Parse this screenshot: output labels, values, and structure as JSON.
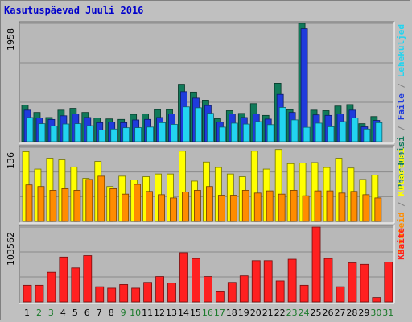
{
  "title": "Kasutuspäevad Juuli 2016",
  "chart_data": [
    {
      "type": "bar",
      "panel": "top",
      "y_max_label": "1958",
      "ylim": [
        0,
        1958
      ],
      "categories": [
        "1",
        "2",
        "3",
        "4",
        "5",
        "6",
        "7",
        "8",
        "9",
        "10",
        "11",
        "12",
        "13",
        "14",
        "15",
        "16",
        "17",
        "18",
        "19",
        "20",
        "21",
        "22",
        "23",
        "24",
        "25",
        "26",
        "27",
        "28",
        "29",
        "30",
        "31"
      ],
      "series": [
        {
          "name": "Pöördumisi",
          "color": "#117a5a",
          "values": [
            604,
            484,
            400,
            522,
            552,
            484,
            392,
            377,
            369,
            452,
            461,
            530,
            530,
            951,
            821,
            687,
            380,
            513,
            468,
            629,
            435,
            967,
            530,
            1958,
            522,
            513,
            590,
            614,
            298,
            416,
            0
          ]
        },
        {
          "name": "Faile",
          "color": "#1f3bdc",
          "values": [
            522,
            392,
            368,
            429,
            460,
            400,
            315,
            324,
            315,
            360,
            369,
            400,
            460,
            828,
            721,
            598,
            324,
            460,
            400,
            460,
            374,
            783,
            484,
            1870,
            444,
            435,
            460,
            522,
            246,
            352,
            0
          ]
        },
        {
          "name": "Leheküljed",
          "color": "#22d4f0",
          "values": [
            400,
            298,
            261,
            293,
            298,
            265,
            194,
            209,
            231,
            232,
            242,
            315,
            287,
            576,
            561,
            469,
            241,
            307,
            292,
            332,
            282,
            567,
            361,
            238,
            307,
            248,
            332,
            392,
            209,
            315,
            0
          ]
        }
      ],
      "yaxis_legend": "Pöördumisi / Faile / Leheküljed"
    },
    {
      "type": "bar",
      "panel": "middle",
      "y_max_label": "136",
      "ylim": [
        0,
        136
      ],
      "categories": [
        "1",
        "2",
        "3",
        "4",
        "5",
        "6",
        "7",
        "8",
        "9",
        "10",
        "11",
        "12",
        "13",
        "14",
        "15",
        "16",
        "17",
        "18",
        "19",
        "20",
        "21",
        "22",
        "23",
        "24",
        "25",
        "26",
        "27",
        "28",
        "29",
        "30",
        "31"
      ],
      "series": [
        {
          "name": "Külastusi",
          "color": "#ffff00",
          "values": [
            128,
            96,
            116,
            113,
            100,
            79,
            110,
            64,
            83,
            76,
            82,
            87,
            87,
            129,
            74,
            109,
            99,
            87,
            82,
            129,
            96,
            132,
            106,
            107,
            108,
            99,
            116,
            98,
            77,
            85,
            0
          ]
        },
        {
          "name": "Arvuteid",
          "color": "#ff8c00",
          "values": [
            67,
            64,
            57,
            60,
            57,
            77,
            83,
            60,
            50,
            68,
            55,
            49,
            43,
            54,
            57,
            64,
            48,
            48,
            57,
            52,
            56,
            50,
            57,
            47,
            56,
            56,
            52,
            55,
            49,
            43,
            0
          ]
        }
      ],
      "yaxis_legend": "Külastusi / Arvuteid"
    },
    {
      "type": "bar",
      "panel": "bottom",
      "y_max_label": "103562",
      "ylim": [
        0,
        103562
      ],
      "categories": [
        "1",
        "2",
        "3",
        "4",
        "5",
        "6",
        "7",
        "8",
        "9",
        "10",
        "11",
        "12",
        "13",
        "14",
        "15",
        "16",
        "17",
        "18",
        "19",
        "20",
        "21",
        "22",
        "23",
        "24",
        "25",
        "26",
        "27",
        "28",
        "29",
        "30",
        "31"
      ],
      "series": [
        {
          "name": "KBaite",
          "color": "#ff2020",
          "values": [
            23000,
            23000,
            41000,
            62000,
            47000,
            64000,
            21000,
            19000,
            24000,
            19000,
            27000,
            35000,
            26000,
            68000,
            60000,
            35000,
            14000,
            27000,
            36000,
            57000,
            57000,
            29000,
            59000,
            23000,
            103562,
            60000,
            21000,
            54000,
            52000,
            6000,
            55000
          ]
        }
      ],
      "yaxis_legend": "KBaite"
    }
  ],
  "xaxis": {
    "labels": [
      "1",
      "2",
      "3",
      "4",
      "5",
      "6",
      "7",
      "8",
      "9",
      "10",
      "11",
      "12",
      "13",
      "14",
      "15",
      "16",
      "17",
      "18",
      "19",
      "20",
      "21",
      "22",
      "23",
      "24",
      "25",
      "26",
      "27",
      "28",
      "29",
      "30",
      "31"
    ],
    "weekend_days": [
      2,
      3,
      9,
      10,
      16,
      17,
      23,
      24,
      30,
      31
    ],
    "weekday_color": "#000000",
    "weekend_color": "#1a7a2a"
  },
  "legend_top": [
    {
      "text": "Pöördumisi",
      "color": "#117a5a"
    },
    {
      "text": " / ",
      "color": "#808080"
    },
    {
      "text": "Faile",
      "color": "#1f3bdc"
    },
    {
      "text": " / ",
      "color": "#808080"
    },
    {
      "text": "Leheküljed",
      "color": "#22d4f0"
    }
  ],
  "legend_middle": [
    {
      "text": "Arvuteid",
      "color": "#ff8c00"
    },
    {
      "text": " / ",
      "color": "#808080"
    },
    {
      "text": "Külastusi",
      "color": "#ffff00"
    }
  ],
  "legend_bottom": [
    {
      "text": "KBaite",
      "color": "#ff2020"
    }
  ]
}
